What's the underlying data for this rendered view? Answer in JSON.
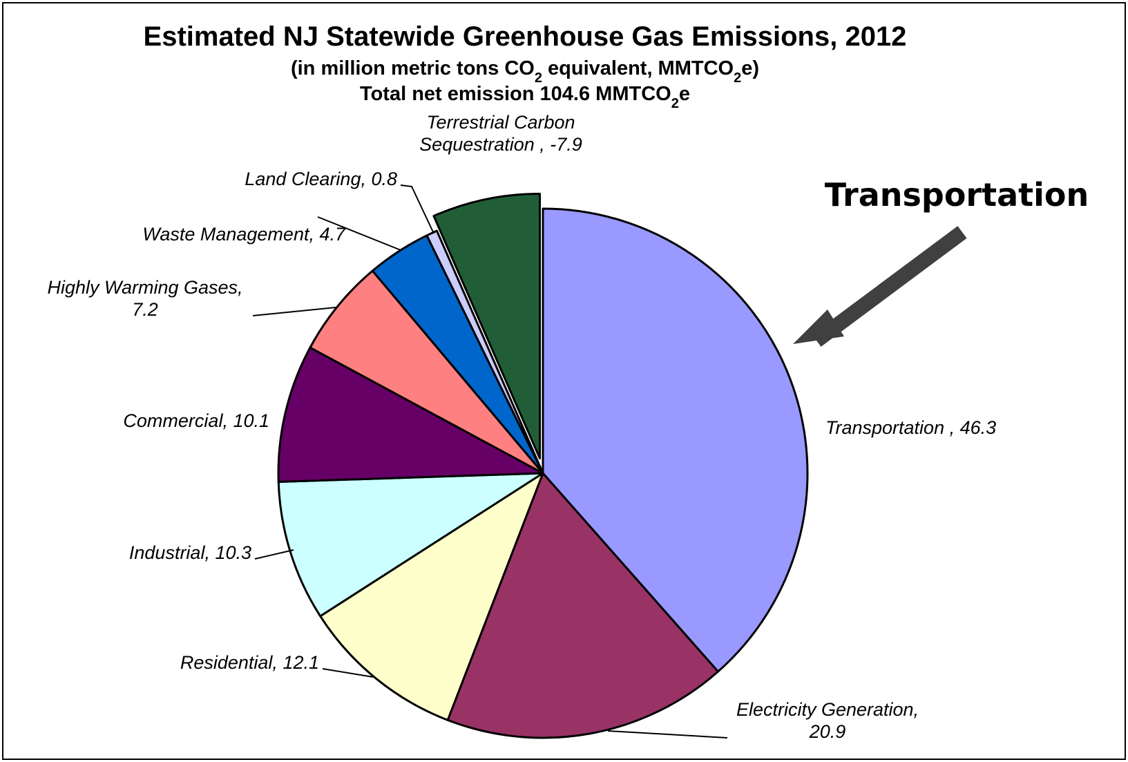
{
  "chart_data": {
    "type": "pie",
    "title": "Estimated NJ Statewide Greenhouse Gas Emissions, 2012",
    "subtitle_parts": [
      "(in million metric tons CO",
      "2",
      " equivalent, MMTCO",
      "2",
      "e)"
    ],
    "total_parts": [
      "Total net emission 104.6 MMTCO",
      "2",
      "e"
    ],
    "slices": [
      {
        "name": "Transportation",
        "value": 46.3,
        "label_lines": [
          "Transportation , 46.3"
        ],
        "color": "#9999FF"
      },
      {
        "name": "Electricity Generation",
        "value": 20.9,
        "label_lines": [
          "Electricity Generation,",
          "20.9"
        ],
        "color": "#993366"
      },
      {
        "name": "Residential",
        "value": 12.1,
        "label_lines": [
          "Residential, 12.1"
        ],
        "color": "#FFFFCC"
      },
      {
        "name": "Industrial",
        "value": 10.3,
        "label_lines": [
          "Industrial, 10.3"
        ],
        "color": "#CCFFFF"
      },
      {
        "name": "Commercial",
        "value": 10.1,
        "label_lines": [
          "Commercial, 10.1"
        ],
        "color": "#660066"
      },
      {
        "name": "Highly Warming Gases",
        "value": 7.2,
        "label_lines": [
          "Highly Warming Gases,",
          "7.2"
        ],
        "color": "#FF8080"
      },
      {
        "name": "Waste Management",
        "value": 4.7,
        "label_lines": [
          "Waste Management, 4.7"
        ],
        "color": "#0066CC"
      },
      {
        "name": "Land Clearing",
        "value": 0.8,
        "label_lines": [
          "Land Clearing, 0.8"
        ],
        "color": "#CCCCFF"
      },
      {
        "name": "Terrestrial Carbon Sequestration",
        "value": -7.9,
        "label_lines": [
          "Terrestrial Carbon",
          "Sequestration , -7.9"
        ],
        "color": "#215E37",
        "exploded": true
      }
    ],
    "annotation": {
      "text": "Transportation",
      "arrow_color": "#404040",
      "points_to": "Transportation"
    },
    "legend": "none (data labels)"
  }
}
